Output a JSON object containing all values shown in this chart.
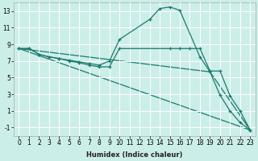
{
  "title": "",
  "xlabel": "Humidex (Indice chaleur)",
  "background_color": "#cceee8",
  "line_color": "#1a7a6e",
  "grid_color": "#ffffff",
  "xlim": [
    -0.5,
    23.5
  ],
  "ylim": [
    -2.0,
    14.0
  ],
  "yticks": [
    -1,
    1,
    3,
    5,
    7,
    9,
    11,
    13
  ],
  "xticks": [
    0,
    1,
    2,
    3,
    4,
    5,
    6,
    7,
    8,
    9,
    10,
    11,
    12,
    13,
    14,
    15,
    16,
    17,
    18,
    19,
    20,
    21,
    22,
    23
  ],
  "series1_x": [
    0,
    1,
    2,
    3,
    4,
    5,
    6,
    7,
    8,
    9,
    10,
    13,
    14,
    15,
    16,
    18,
    19,
    20,
    21,
    22,
    23
  ],
  "series1_y": [
    8.5,
    8.5,
    7.8,
    7.5,
    7.3,
    7.1,
    6.9,
    6.7,
    6.5,
    7.0,
    9.6,
    12.0,
    13.3,
    13.5,
    13.1,
    7.5,
    5.7,
    2.9,
    1.0,
    -0.4,
    -1.3
  ],
  "series2_x": [
    0,
    1,
    2,
    3,
    4,
    5,
    6,
    7,
    8,
    9,
    10,
    15,
    16,
    17,
    18,
    19,
    20,
    21,
    22,
    23
  ],
  "series2_y": [
    8.5,
    8.5,
    7.8,
    7.5,
    7.3,
    7.0,
    6.8,
    6.5,
    6.3,
    6.3,
    8.5,
    8.5,
    8.5,
    8.5,
    8.5,
    5.8,
    5.8,
    2.8,
    1.0,
    -1.3
  ],
  "series3_x": [
    0,
    23
  ],
  "series3_y": [
    8.5,
    -1.3
  ],
  "series4_x": [
    0,
    19,
    23
  ],
  "series4_y": [
    8.5,
    5.7,
    -1.3
  ],
  "xlabel_fontsize": 6,
  "tick_fontsize": 5.5,
  "linewidth": 0.9,
  "markersize": 3.5
}
